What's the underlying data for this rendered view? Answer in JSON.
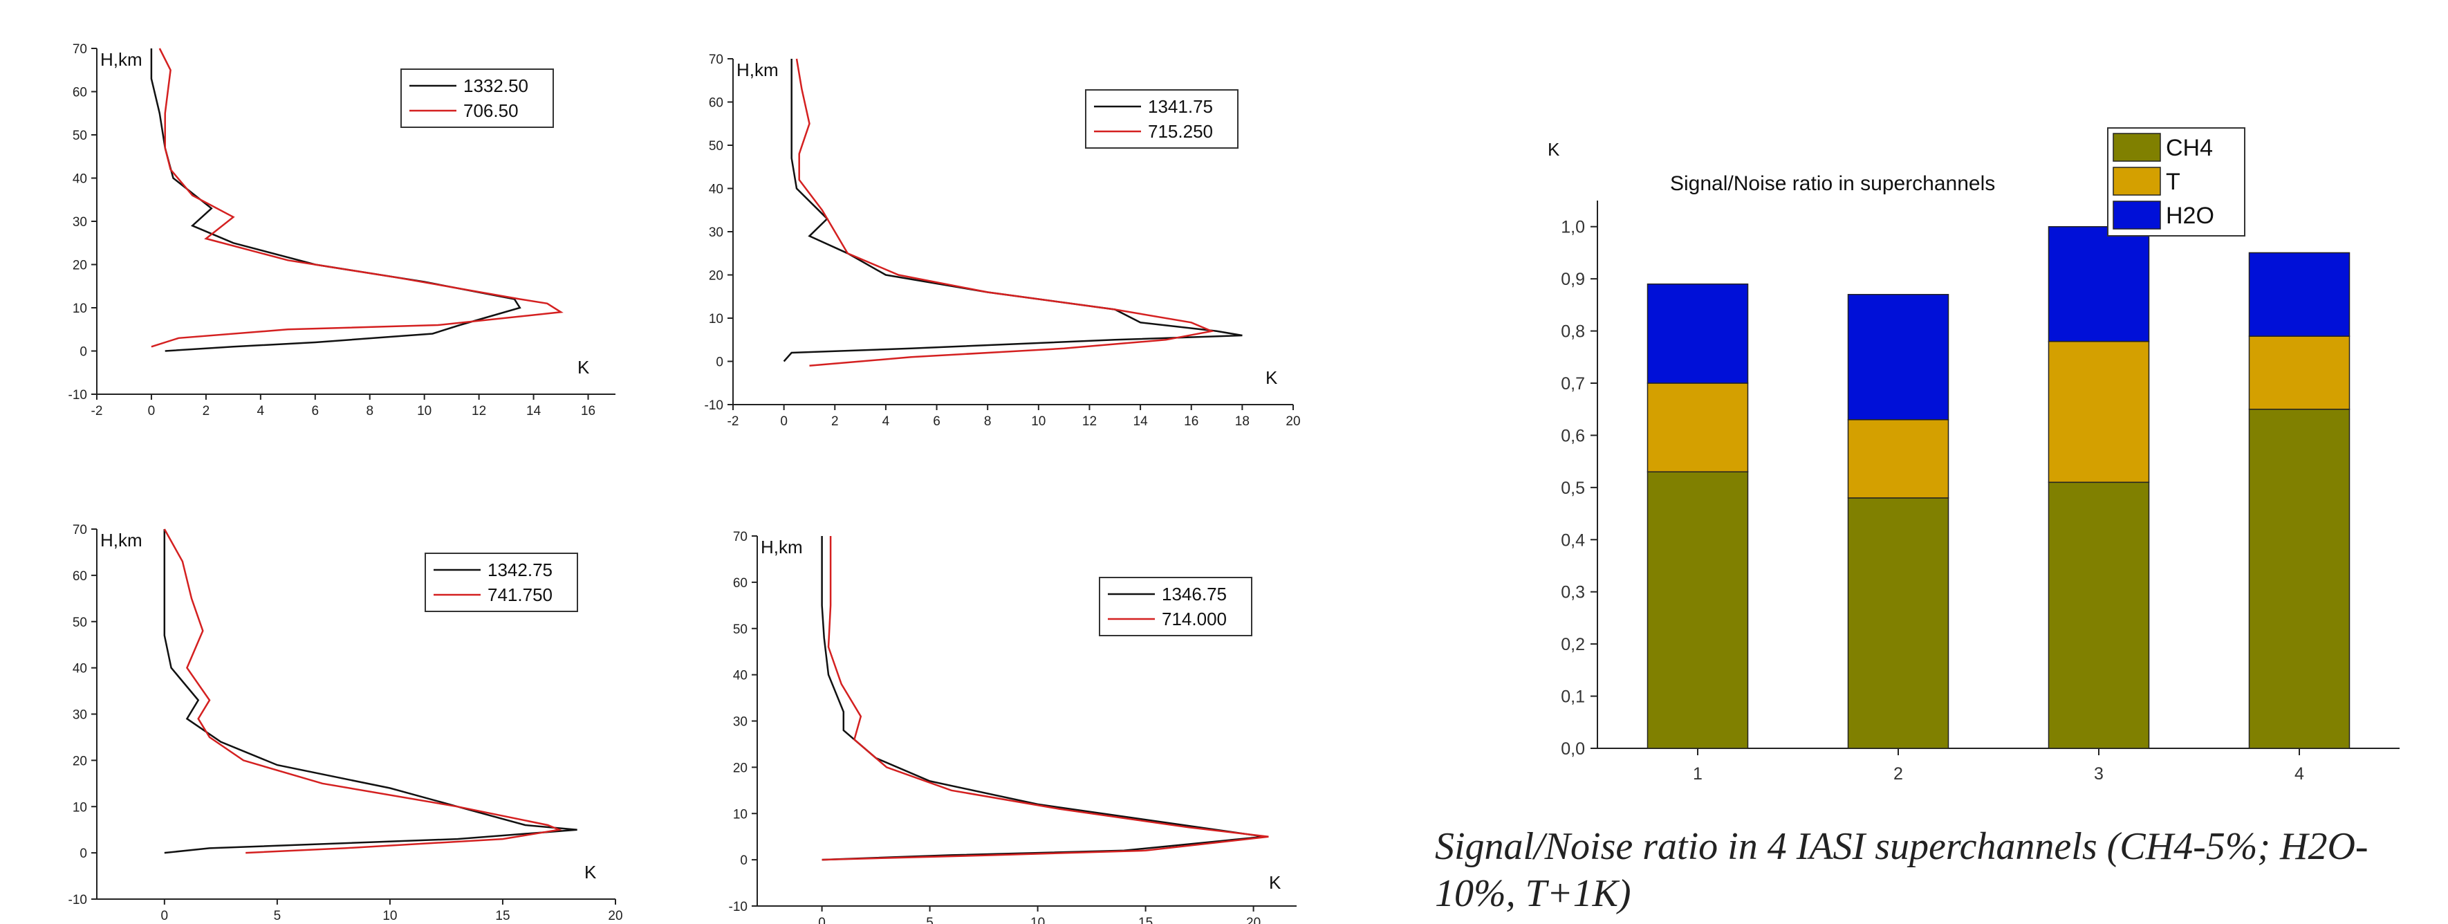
{
  "profile_axis": {
    "ylabel": "H,km",
    "xlabel": "K",
    "y_ticks": [
      "-10",
      "0",
      "10",
      "20",
      "30",
      "40",
      "50",
      "60",
      "70"
    ]
  },
  "profiles": [
    {
      "x_ticks": [
        "-2",
        "0",
        "2",
        "4",
        "6",
        "8",
        "10",
        "12",
        "14",
        "16"
      ],
      "xlim": [
        -2,
        17
      ],
      "ylim": [
        -10,
        70
      ],
      "legend": [
        "1332.50",
        "706.50"
      ],
      "black": [
        [
          0.5,
          0
        ],
        [
          3,
          1
        ],
        [
          6,
          2
        ],
        [
          10.3,
          4
        ],
        [
          11.3,
          6
        ],
        [
          13.5,
          10
        ],
        [
          13.3,
          12
        ],
        [
          10,
          16
        ],
        [
          6,
          20
        ],
        [
          3,
          25
        ],
        [
          1.5,
          29
        ],
        [
          2.2,
          33
        ],
        [
          0.8,
          40
        ],
        [
          0.5,
          47
        ],
        [
          0.3,
          55
        ],
        [
          0,
          63
        ],
        [
          0,
          70
        ]
      ],
      "red": [
        [
          0,
          1
        ],
        [
          1,
          3
        ],
        [
          5,
          5
        ],
        [
          10.5,
          6
        ],
        [
          15,
          9
        ],
        [
          14.5,
          11
        ],
        [
          13.5,
          12
        ],
        [
          9,
          17
        ],
        [
          5,
          21
        ],
        [
          2,
          26
        ],
        [
          3,
          31
        ],
        [
          1.5,
          36
        ],
        [
          0.7,
          42
        ],
        [
          0.5,
          47
        ],
        [
          0.5,
          55
        ],
        [
          0.7,
          65
        ],
        [
          0.3,
          70
        ]
      ]
    },
    {
      "x_ticks": [
        "-2",
        "0",
        "2",
        "4",
        "6",
        "8",
        "10",
        "12",
        "14",
        "16",
        "18",
        "20"
      ],
      "xlim": [
        -2,
        20
      ],
      "ylim": [
        -10,
        70
      ],
      "legend": [
        "1341.75",
        "715.250"
      ],
      "black": [
        [
          0,
          0
        ],
        [
          0.3,
          2
        ],
        [
          5,
          3
        ],
        [
          13,
          5
        ],
        [
          18,
          6
        ],
        [
          17,
          7
        ],
        [
          14,
          9
        ],
        [
          13,
          12
        ],
        [
          8,
          16
        ],
        [
          4,
          20
        ],
        [
          2.5,
          25
        ],
        [
          1,
          29
        ],
        [
          1.7,
          33
        ],
        [
          0.5,
          40
        ],
        [
          0.3,
          47
        ],
        [
          0.3,
          55
        ],
        [
          0.3,
          63
        ],
        [
          0.3,
          70
        ]
      ],
      "red": [
        [
          1,
          -1
        ],
        [
          5,
          1
        ],
        [
          11,
          3
        ],
        [
          15,
          5
        ],
        [
          16.8,
          7
        ],
        [
          16,
          9
        ],
        [
          13,
          12
        ],
        [
          8,
          16
        ],
        [
          4.5,
          20
        ],
        [
          2.5,
          25
        ],
        [
          2,
          30
        ],
        [
          1.5,
          35
        ],
        [
          0.6,
          42
        ],
        [
          0.6,
          48
        ],
        [
          1,
          55
        ],
        [
          0.7,
          63
        ],
        [
          0.5,
          70
        ]
      ]
    },
    {
      "x_ticks": [
        "0",
        "5",
        "10",
        "15",
        "20"
      ],
      "xlim": [
        -3,
        20
      ],
      "ylim": [
        -10,
        70
      ],
      "legend": [
        "1342.75",
        "741.750"
      ],
      "black": [
        [
          0,
          0
        ],
        [
          2,
          1
        ],
        [
          13,
          3
        ],
        [
          18.3,
          5
        ],
        [
          16,
          6
        ],
        [
          13,
          10
        ],
        [
          10,
          14
        ],
        [
          5,
          19
        ],
        [
          2.5,
          24
        ],
        [
          1,
          29
        ],
        [
          1.5,
          33
        ],
        [
          0.3,
          40
        ],
        [
          0,
          47
        ],
        [
          0,
          55
        ],
        [
          0,
          63
        ],
        [
          0,
          70
        ]
      ],
      "red": [
        [
          3.6,
          0
        ],
        [
          8,
          1
        ],
        [
          15,
          3
        ],
        [
          17.5,
          5
        ],
        [
          17,
          6
        ],
        [
          13,
          10
        ],
        [
          7,
          15
        ],
        [
          3.5,
          20
        ],
        [
          2,
          25
        ],
        [
          1.5,
          29
        ],
        [
          2,
          33
        ],
        [
          1,
          40
        ],
        [
          1.7,
          48
        ],
        [
          1.2,
          55
        ],
        [
          0.8,
          63
        ],
        [
          0,
          70
        ]
      ]
    },
    {
      "x_ticks": [
        "0",
        "5",
        "10",
        "15",
        "20"
      ],
      "xlim": [
        -3,
        22
      ],
      "ylim": [
        -10,
        70
      ],
      "legend": [
        "1346.75",
        "714.000"
      ],
      "black": [
        [
          0,
          0
        ],
        [
          6,
          1
        ],
        [
          14,
          2
        ],
        [
          20.5,
          5
        ],
        [
          16,
          8
        ],
        [
          10,
          12
        ],
        [
          5,
          17
        ],
        [
          2.5,
          22
        ],
        [
          1,
          28
        ],
        [
          1,
          32
        ],
        [
          0.3,
          40
        ],
        [
          0.1,
          48
        ],
        [
          0,
          55
        ],
        [
          0,
          63
        ],
        [
          0,
          70
        ]
      ],
      "red": [
        [
          0,
          0
        ],
        [
          8,
          1
        ],
        [
          15,
          2
        ],
        [
          20.7,
          5
        ],
        [
          17,
          7
        ],
        [
          11,
          11
        ],
        [
          6,
          15
        ],
        [
          3,
          20
        ],
        [
          1.5,
          26
        ],
        [
          1.8,
          31
        ],
        [
          0.9,
          38
        ],
        [
          0.3,
          46
        ],
        [
          0.4,
          55
        ],
        [
          0.4,
          63
        ],
        [
          0.4,
          70
        ]
      ]
    }
  ],
  "chart_data": {
    "type": "bar",
    "stacked": true,
    "title": "Signal/Noise ratio in superchannels",
    "ylabel": "K",
    "categories": [
      "1",
      "2",
      "3",
      "4"
    ],
    "ylim": [
      0,
      1.05
    ],
    "y_ticks": [
      "0,0",
      "0,1",
      "0,2",
      "0,3",
      "0,4",
      "0,5",
      "0,6",
      "0,7",
      "0,8",
      "0,9",
      "1,0"
    ],
    "series": [
      {
        "name": "CH4",
        "color": "#808000",
        "values": [
          0.53,
          0.48,
          0.51,
          0.65
        ]
      },
      {
        "name": "T",
        "color": "#d4a000",
        "values": [
          0.17,
          0.15,
          0.27,
          0.14
        ]
      },
      {
        "name": "H2O",
        "color": "#0010d8",
        "values": [
          0.19,
          0.24,
          0.22,
          0.16
        ]
      }
    ],
    "legend_position": "top-right"
  },
  "caption": "Signal/Noise ratio in 4 IASI superchannels (CH4-5%; H2O-10%, T+1K)"
}
